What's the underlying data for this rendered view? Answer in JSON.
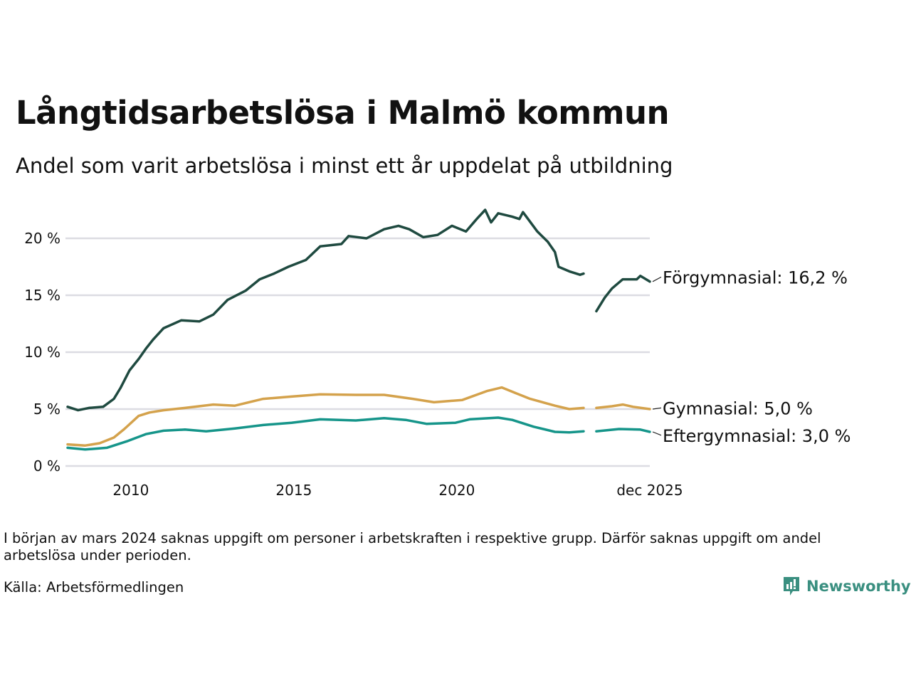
{
  "title": "Långtidsarbetslösa i Malmö kommun",
  "subtitle": "Andel som varit arbetslösa i minst ett år uppdelat på utbildning",
  "note": "I början av mars 2024 saknas uppgift om personer i arbetskraften i respektive grupp. Därför saknas uppgift om andel arbetslösa under perioden.",
  "source": "Källa: Arbetsförmedlingen",
  "logo": "Newsworthy",
  "chart_data": {
    "type": "line",
    "title": "Långtidsarbetslösa i Malmö kommun",
    "xlabel": "",
    "ylabel": "",
    "xlim": [
      2008.06,
      2025.92
    ],
    "ylim": [
      0,
      23
    ],
    "grid": true,
    "yticks": [
      {
        "v": 0,
        "label": "0 %"
      },
      {
        "v": 5,
        "label": "5 %"
      },
      {
        "v": 10,
        "label": "10 %"
      },
      {
        "v": 15,
        "label": "15 %"
      },
      {
        "v": 20,
        "label": "20 %"
      }
    ],
    "xticks": [
      {
        "v": 2010,
        "label": "2010"
      },
      {
        "v": 2015,
        "label": "2015"
      },
      {
        "v": 2020,
        "label": "2020"
      },
      {
        "v": 2025.92,
        "label": "dec 2025"
      }
    ],
    "series": [
      {
        "name": "Förgymnasial",
        "label": "Förgymnasial: 16,2 %",
        "color": "#1f4a40",
        "label_value": 16.6,
        "segments": [
          [
            [
              2008.06,
              5.2
            ],
            [
              2008.38,
              4.9
            ],
            [
              2008.71,
              5.1
            ],
            [
              2009.15,
              5.2
            ],
            [
              2009.48,
              5.9
            ],
            [
              2009.69,
              6.9
            ],
            [
              2009.96,
              8.4
            ],
            [
              2010.24,
              9.4
            ],
            [
              2010.46,
              10.3
            ],
            [
              2010.68,
              11.1
            ],
            [
              2011.0,
              12.1
            ],
            [
              2011.55,
              12.8
            ],
            [
              2012.1,
              12.7
            ],
            [
              2012.53,
              13.3
            ],
            [
              2012.97,
              14.6
            ],
            [
              2013.52,
              15.4
            ],
            [
              2013.95,
              16.4
            ],
            [
              2014.39,
              16.9
            ],
            [
              2014.83,
              17.5
            ],
            [
              2015.37,
              18.1
            ],
            [
              2015.81,
              19.3
            ],
            [
              2016.46,
              19.5
            ],
            [
              2016.68,
              20.2
            ],
            [
              2017.23,
              20.0
            ],
            [
              2017.77,
              20.8
            ],
            [
              2018.21,
              21.1
            ],
            [
              2018.54,
              20.8
            ],
            [
              2018.97,
              20.1
            ],
            [
              2019.41,
              20.3
            ],
            [
              2019.85,
              21.1
            ],
            [
              2020.28,
              20.6
            ],
            [
              2020.61,
              21.7
            ],
            [
              2020.87,
              22.5
            ],
            [
              2021.05,
              21.4
            ],
            [
              2021.27,
              22.2
            ],
            [
              2021.7,
              21.9
            ],
            [
              2021.92,
              21.7
            ],
            [
              2022.03,
              22.3
            ],
            [
              2022.47,
              20.6
            ],
            [
              2022.79,
              19.7
            ],
            [
              2023.01,
              18.8
            ],
            [
              2023.12,
              17.5
            ],
            [
              2023.45,
              17.1
            ],
            [
              2023.78,
              16.8
            ],
            [
              2023.89,
              16.9
            ]
          ],
          [
            [
              2024.28,
              13.6
            ],
            [
              2024.54,
              14.8
            ],
            [
              2024.76,
              15.6
            ],
            [
              2025.09,
              16.4
            ],
            [
              2025.52,
              16.4
            ],
            [
              2025.63,
              16.7
            ],
            [
              2025.92,
              16.2
            ]
          ]
        ]
      },
      {
        "name": "Gymnasial",
        "label": "Gymnasial:  5,0 %",
        "color": "#d4a24c",
        "label_value": 5.1,
        "segments": [
          [
            [
              2008.06,
              1.9
            ],
            [
              2008.6,
              1.8
            ],
            [
              2009.04,
              2.0
            ],
            [
              2009.48,
              2.5
            ],
            [
              2009.8,
              3.25
            ],
            [
              2010.24,
              4.4
            ],
            [
              2010.57,
              4.7
            ],
            [
              2011.0,
              4.9
            ],
            [
              2011.66,
              5.1
            ],
            [
              2012.53,
              5.4
            ],
            [
              2013.19,
              5.3
            ],
            [
              2014.06,
              5.9
            ],
            [
              2014.93,
              6.1
            ],
            [
              2015.81,
              6.3
            ],
            [
              2016.9,
              6.25
            ],
            [
              2017.77,
              6.25
            ],
            [
              2018.65,
              5.9
            ],
            [
              2019.3,
              5.6
            ],
            [
              2020.17,
              5.8
            ],
            [
              2020.94,
              6.6
            ],
            [
              2021.38,
              6.9
            ],
            [
              2021.81,
              6.4
            ],
            [
              2022.25,
              5.9
            ],
            [
              2023.01,
              5.3
            ],
            [
              2023.45,
              5.0
            ],
            [
              2023.89,
              5.1
            ]
          ],
          [
            [
              2024.28,
              5.1
            ],
            [
              2024.76,
              5.25
            ],
            [
              2025.09,
              5.4
            ],
            [
              2025.41,
              5.2
            ],
            [
              2025.92,
              5.0
            ]
          ]
        ]
      },
      {
        "name": "Eftergymnasial",
        "label": "Eftergymnasial:  3,0 %",
        "color": "#16958a",
        "label_value": 2.7,
        "segments": [
          [
            [
              2008.06,
              1.6
            ],
            [
              2008.6,
              1.45
            ],
            [
              2009.26,
              1.6
            ],
            [
              2009.91,
              2.2
            ],
            [
              2010.46,
              2.8
            ],
            [
              2011.0,
              3.1
            ],
            [
              2011.66,
              3.2
            ],
            [
              2012.31,
              3.05
            ],
            [
              2013.19,
              3.3
            ],
            [
              2014.06,
              3.6
            ],
            [
              2014.93,
              3.8
            ],
            [
              2015.81,
              4.1
            ],
            [
              2016.9,
              4.0
            ],
            [
              2017.77,
              4.2
            ],
            [
              2018.43,
              4.05
            ],
            [
              2019.08,
              3.7
            ],
            [
              2019.96,
              3.8
            ],
            [
              2020.39,
              4.1
            ],
            [
              2021.27,
              4.25
            ],
            [
              2021.7,
              4.05
            ],
            [
              2022.36,
              3.45
            ],
            [
              2023.01,
              3.0
            ],
            [
              2023.45,
              2.95
            ],
            [
              2023.89,
              3.05
            ]
          ],
          [
            [
              2024.28,
              3.05
            ],
            [
              2024.98,
              3.25
            ],
            [
              2025.63,
              3.2
            ],
            [
              2025.92,
              3.0
            ]
          ]
        ]
      }
    ]
  }
}
